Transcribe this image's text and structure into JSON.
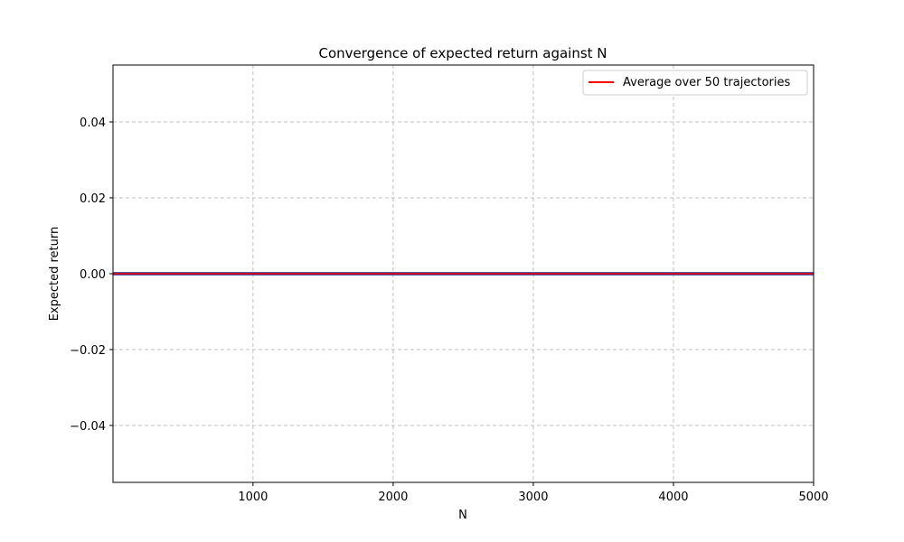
{
  "chart_data": {
    "type": "line",
    "title": "Convergence of expected return against N",
    "xlabel": "N",
    "ylabel": "Expected return",
    "xlim": [
      1,
      5000
    ],
    "ylim": [
      -0.055,
      0.055
    ],
    "xticks": [
      1000,
      2000,
      3000,
      4000,
      5000
    ],
    "yticks": [
      -0.04,
      -0.02,
      0.0,
      0.02,
      0.04
    ],
    "ytick_labels": [
      "−0.04",
      "−0.02",
      "0.00",
      "0.02",
      "0.04"
    ],
    "grid": true,
    "legend_position": "upper right",
    "series": [
      {
        "name": "Average over 50 trajectories",
        "color": "#ff0000",
        "x": [
          1,
          5000
        ],
        "y": [
          0.0,
          0.0
        ]
      }
    ],
    "reference_line": {
      "y": 0.0,
      "color": "#1f2f8f"
    }
  }
}
